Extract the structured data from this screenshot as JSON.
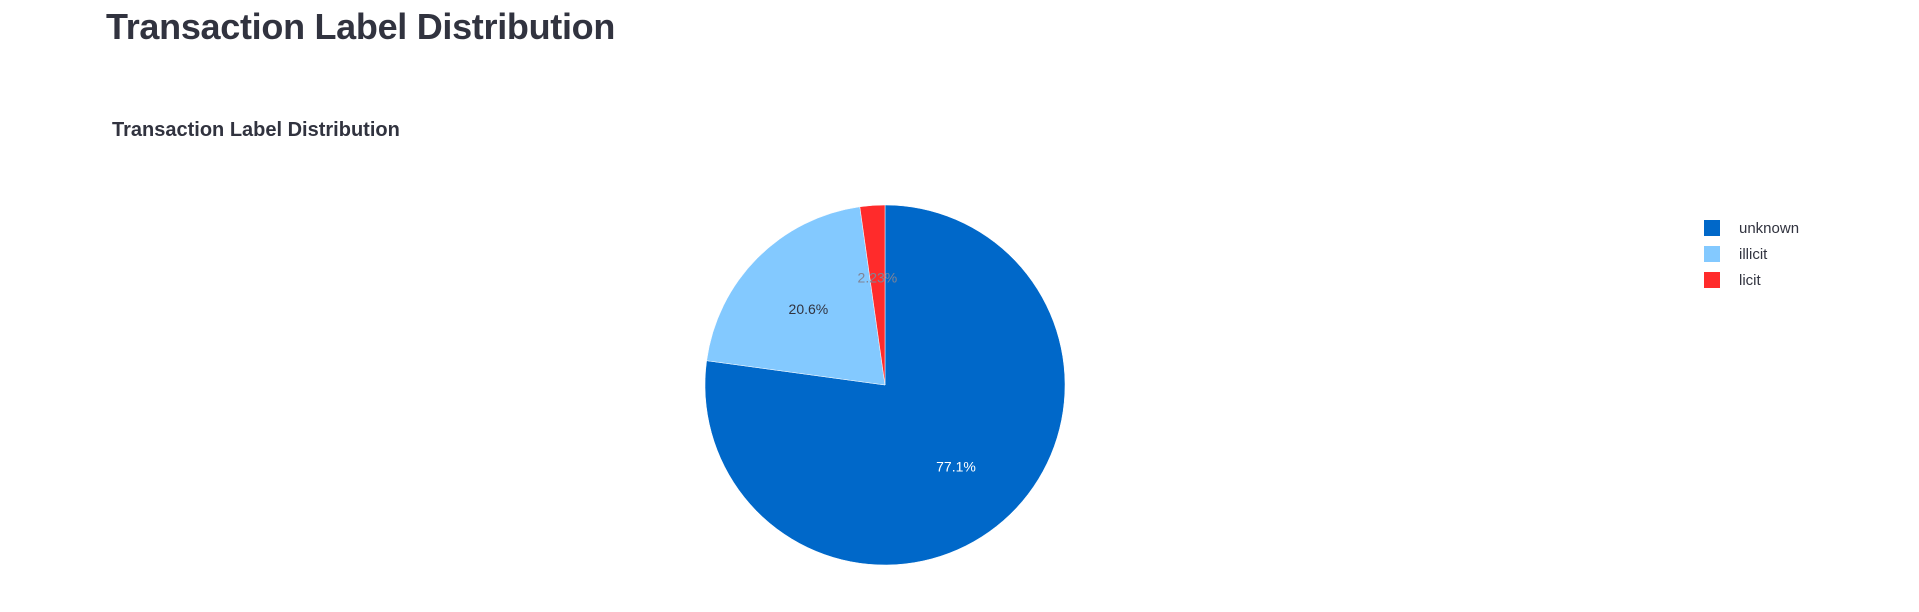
{
  "page": {
    "title": "Transaction Label Distribution"
  },
  "chart_data": {
    "type": "pie",
    "title": "Transaction Label Distribution",
    "labels": [
      "unknown",
      "illicit",
      "licit"
    ],
    "values": [
      77.1,
      20.6,
      2.23
    ],
    "text_labels": [
      "77.1%",
      "20.6%",
      "2.23%"
    ],
    "colors": [
      "#0068c9",
      "#83c9ff",
      "#ff2b2b"
    ],
    "text_colors": [
      "#ffffff",
      "#31333f",
      "#808495"
    ],
    "direction": "clockwise",
    "rotation_start": "top",
    "legend_position": "top-right"
  }
}
